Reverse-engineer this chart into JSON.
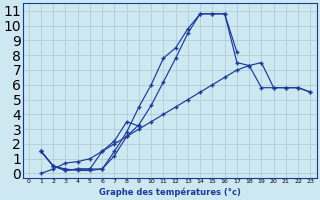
{
  "xlabel": "Graphe des températures (°c)",
  "background_color": "#cde8f0",
  "grid_color": "#aac8d4",
  "line_color": "#1a3a9c",
  "xlim": [
    -0.5,
    23.5
  ],
  "ylim": [
    -0.3,
    11.5
  ],
  "xticks": [
    0,
    1,
    2,
    3,
    4,
    5,
    6,
    7,
    8,
    9,
    10,
    11,
    12,
    13,
    14,
    15,
    16,
    17,
    18,
    19,
    20,
    21,
    22,
    23
  ],
  "yticks": [
    0,
    1,
    2,
    3,
    4,
    5,
    6,
    7,
    8,
    9,
    10,
    11
  ],
  "curve1_x": [
    1,
    2,
    3,
    4,
    5,
    6,
    7,
    8,
    9,
    10,
    11,
    12,
    13,
    14,
    15,
    16,
    17
  ],
  "curve1_y": [
    1.5,
    0.5,
    0.3,
    0.2,
    0.2,
    0.3,
    1.2,
    2.5,
    3.3,
    4.6,
    6.2,
    7.8,
    9.5,
    10.8,
    10.8,
    10.8,
    8.2
  ],
  "curve2_x": [
    1,
    2,
    3,
    4,
    5,
    6,
    7,
    8,
    9,
    10,
    11,
    12,
    13,
    14,
    15,
    16,
    17,
    18,
    19,
    20,
    21,
    22,
    23
  ],
  "curve2_y": [
    1.5,
    0.5,
    0.2,
    0.3,
    0.3,
    0.3,
    1.5,
    2.8,
    4.5,
    6.0,
    7.8,
    8.5,
    9.8,
    10.8,
    10.8,
    10.8,
    7.5,
    7.3,
    5.8,
    5.8,
    5.8,
    5.8,
    5.5
  ],
  "curve3_x": [
    1,
    2,
    3,
    4,
    5,
    6,
    7,
    8,
    9
  ],
  "curve3_y": [
    1.5,
    0.5,
    0.2,
    0.3,
    0.3,
    1.5,
    2.2,
    3.5,
    3.2
  ],
  "curve4_x": [
    1,
    2,
    3,
    4,
    5,
    6,
    7,
    8,
    9,
    10,
    11,
    12,
    13,
    14,
    15,
    16,
    17,
    18,
    19,
    20,
    21,
    22,
    23
  ],
  "curve4_y": [
    0.0,
    0.3,
    0.7,
    0.8,
    1.0,
    1.5,
    2.0,
    2.5,
    3.0,
    3.5,
    4.0,
    4.5,
    5.0,
    5.5,
    6.0,
    6.5,
    7.0,
    7.3,
    7.5,
    5.8,
    5.8,
    5.8,
    5.5
  ]
}
